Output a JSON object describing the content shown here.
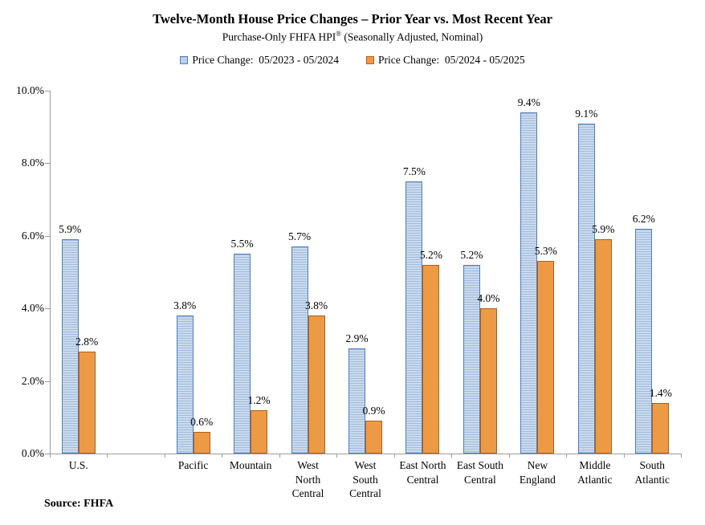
{
  "header": {
    "title": "Twelve-Month House Price Changes – Prior Year vs. Most Recent Year",
    "subtitle_prefix": "Purchase-Only FHFA HPI",
    "subtitle_sup": "®",
    "subtitle_suffix": " (Seasonally Adjusted, Nominal)"
  },
  "source": {
    "label": "Source: FHFA"
  },
  "colors": {
    "blue_fill": "#cadaec",
    "blue_stripe": "#a2bcdc",
    "blue_border": "#4d7ebd",
    "orange_fill": "#ec9a44",
    "orange_border": "#ae5f1e",
    "axis": "#9b9b9b"
  },
  "chart_data": {
    "type": "bar",
    "title": "Twelve-Month House Price Changes – Prior Year vs. Most Recent Year",
    "subtitle": "Purchase-Only FHFA HPI® (Seasonally Adjusted, Nominal)",
    "categories": [
      "U.S.",
      "Pacific",
      "Mountain",
      "West North Central",
      "West South Central",
      "East North Central",
      "East South Central",
      "New England",
      "Middle Atlantic",
      "South Atlantic"
    ],
    "category_label_lines": [
      [
        "U.S."
      ],
      [
        "Pacific"
      ],
      [
        "Mountain"
      ],
      [
        "West",
        "North",
        "Central"
      ],
      [
        "West",
        "South",
        "Central"
      ],
      [
        "East North",
        "Central"
      ],
      [
        "East South",
        "Central"
      ],
      [
        "New",
        "England"
      ],
      [
        "Middle",
        "Atlantic"
      ],
      [
        "South",
        "Atlantic"
      ]
    ],
    "series": [
      {
        "name": "Price Change:  05/2023 - 05/2024",
        "color": "blue",
        "values": [
          5.9,
          3.8,
          5.5,
          5.7,
          2.9,
          7.5,
          5.2,
          9.4,
          9.1,
          6.2
        ]
      },
      {
        "name": "Price Change:  05/2024 - 05/2025",
        "color": "orange",
        "values": [
          2.8,
          0.6,
          1.2,
          3.8,
          0.9,
          5.2,
          4.0,
          5.3,
          5.9,
          1.4
        ]
      }
    ],
    "data_labels_format": "{value}%",
    "category_slots": [
      0,
      2,
      3,
      4,
      5,
      6,
      7,
      8,
      9,
      10
    ],
    "total_slots": 11,
    "ylim": [
      0,
      10
    ],
    "ytick_step": 2,
    "ytick_labels": [
      "0.0%",
      "2.0%",
      "4.0%",
      "6.0%",
      "8.0%",
      "10.0%"
    ],
    "grid": false,
    "legend_position": "top",
    "xlabel": "",
    "ylabel": ""
  }
}
